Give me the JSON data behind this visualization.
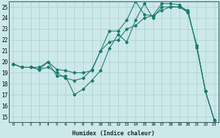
{
  "title": "",
  "xlabel": "Humidex (Indice chaleur)",
  "bg_color": "#cce8e8",
  "line_color": "#1a7a6e",
  "grid_color": "#aacece",
  "xlim": [
    -0.5,
    23.5
  ],
  "ylim": [
    14.5,
    25.5
  ],
  "yticks": [
    15,
    16,
    17,
    18,
    19,
    20,
    21,
    22,
    23,
    24,
    25
  ],
  "xticks": [
    0,
    1,
    2,
    3,
    4,
    5,
    6,
    7,
    8,
    9,
    10,
    11,
    12,
    13,
    14,
    15,
    16,
    17,
    18,
    19,
    20,
    21,
    22,
    23
  ],
  "line1": {
    "x": [
      0,
      1,
      2,
      3,
      4,
      5,
      6,
      7,
      8,
      9,
      10,
      11,
      12,
      13,
      14,
      15,
      16,
      17,
      18,
      19,
      20,
      21,
      22,
      23
    ],
    "y": [
      19.8,
      19.5,
      19.5,
      19.5,
      20.0,
      18.7,
      18.7,
      17.0,
      17.5,
      18.3,
      19.2,
      21.2,
      22.5,
      21.8,
      23.8,
      25.3,
      24.0,
      25.0,
      25.0,
      25.0,
      24.7,
      21.3,
      17.3,
      14.7
    ]
  },
  "line2": {
    "x": [
      0,
      1,
      2,
      3,
      4,
      5,
      6,
      7,
      8,
      9,
      10,
      11,
      12,
      13,
      14,
      15,
      16,
      17,
      18,
      19,
      20,
      21,
      22,
      23
    ],
    "y": [
      19.8,
      19.5,
      19.5,
      19.3,
      19.5,
      19.0,
      18.5,
      18.3,
      18.5,
      19.3,
      21.0,
      22.8,
      22.8,
      23.8,
      25.5,
      24.3,
      24.2,
      25.3,
      25.3,
      25.2,
      24.5,
      21.5,
      17.3,
      14.7
    ]
  },
  "line3": {
    "x": [
      0,
      1,
      2,
      3,
      4,
      5,
      6,
      7,
      8,
      9,
      10,
      11,
      12,
      13,
      14,
      15,
      16,
      17,
      18,
      19,
      20,
      21,
      22,
      23
    ],
    "y": [
      19.8,
      19.5,
      19.5,
      19.3,
      20.0,
      19.3,
      19.2,
      19.0,
      19.0,
      19.2,
      21.0,
      21.8,
      22.0,
      23.0,
      23.3,
      24.0,
      24.2,
      24.7,
      25.0,
      25.0,
      24.5,
      21.5,
      17.3,
      14.7
    ]
  }
}
